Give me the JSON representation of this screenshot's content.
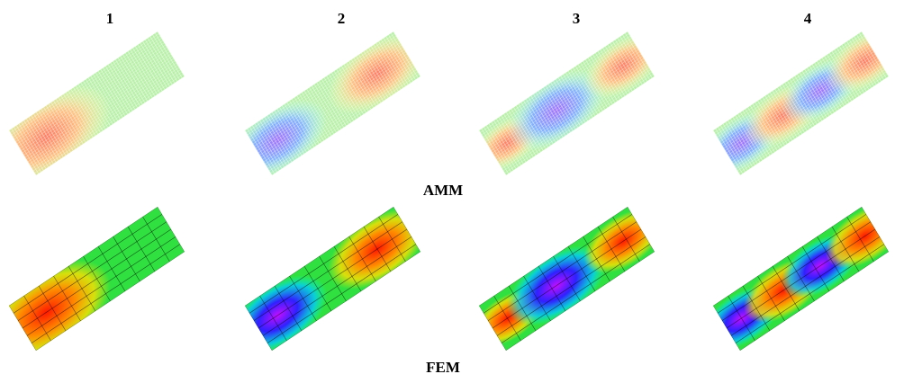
{
  "columns": [
    "1",
    "2",
    "3",
    "4"
  ],
  "rows": [
    "AMM",
    "FEM"
  ]
}
